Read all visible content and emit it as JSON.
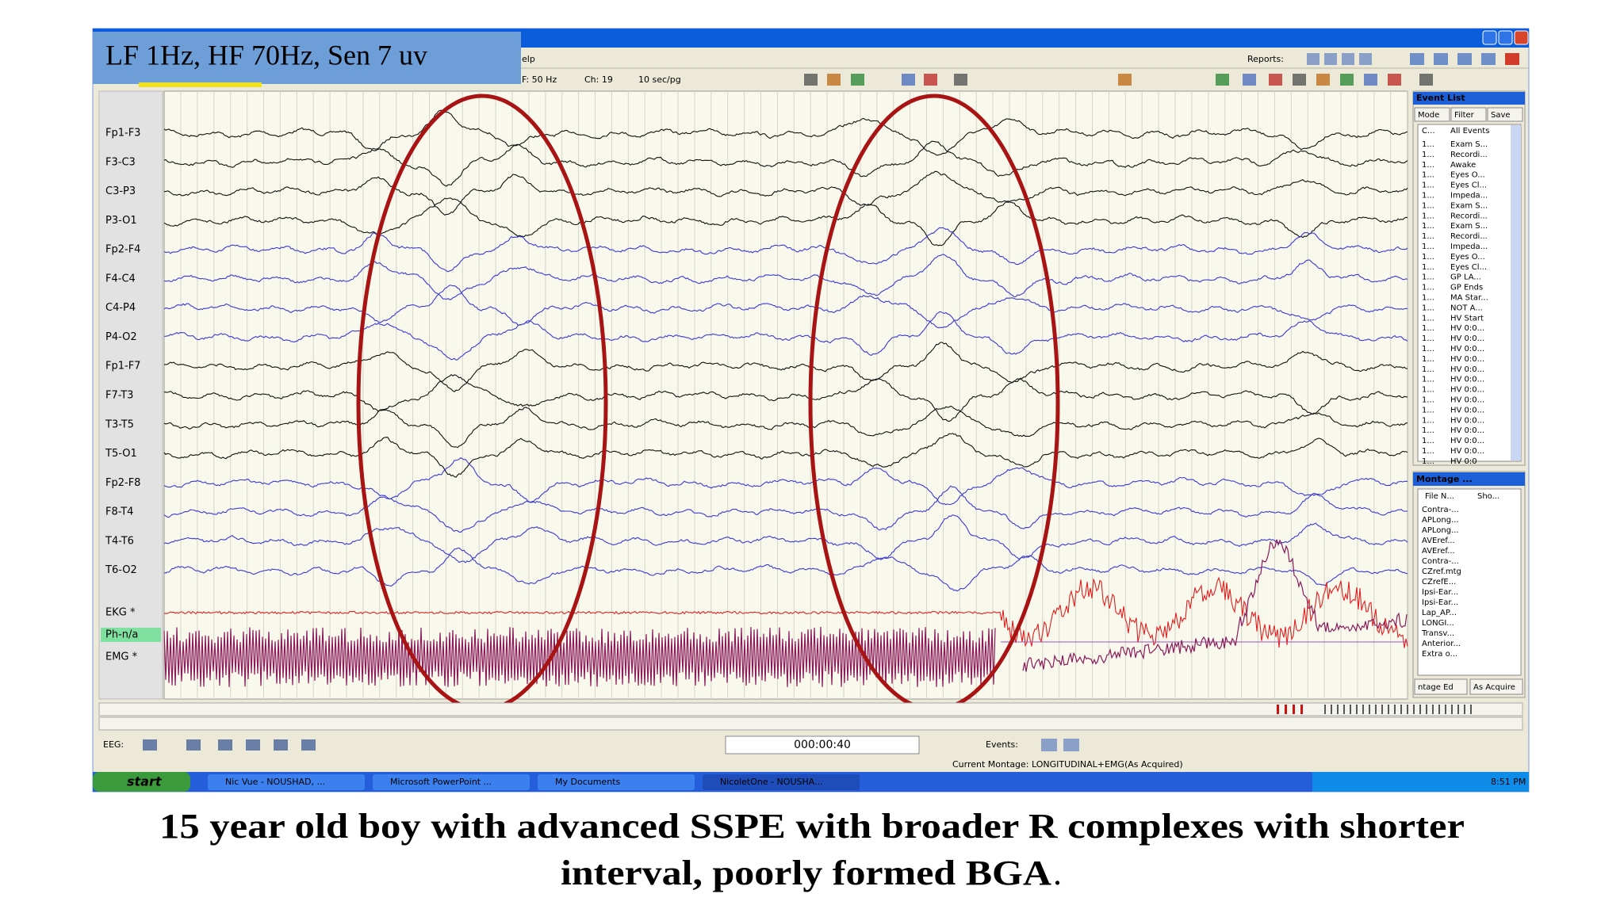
{
  "banner": "LF 1Hz, HF 70Hz, Sen 7 uv",
  "menu": {
    "fragment": "elp",
    "reports": "Reports:"
  },
  "toolbar": {
    "filter": "F: 50 Hz",
    "channels": "Ch: 19",
    "speed": "10 sec/pg"
  },
  "channels": [
    "Fp1-F3",
    "F3-C3",
    "C3-P3",
    "P3-O1",
    "Fp2-F4",
    "F4-C4",
    "C4-P4",
    "P4-O2",
    "Fp1-F7",
    "F7-T3",
    "T3-T5",
    "T5-O1",
    "Fp2-F8",
    "F8-T4",
    "T4-T6",
    "T6-O2",
    "EKG *",
    "Ph-n/a",
    "EMG *"
  ],
  "event_list": {
    "title": "Event List",
    "buttons": [
      "Mode",
      "Filter",
      "Save"
    ],
    "columns": [
      "C...",
      "All Events"
    ],
    "rows": [
      {
        "code": "1...",
        "event": "Exam S..."
      },
      {
        "code": "1...",
        "event": "Recordi..."
      },
      {
        "code": "1...",
        "event": "Awake"
      },
      {
        "code": "1...",
        "event": "Eyes O..."
      },
      {
        "code": "1...",
        "event": "Eyes Cl..."
      },
      {
        "code": "1...",
        "event": "Impeda..."
      },
      {
        "code": "1...",
        "event": "Exam S..."
      },
      {
        "code": "1...",
        "event": "Recordi..."
      },
      {
        "code": "1...",
        "event": "Exam S..."
      },
      {
        "code": "1...",
        "event": "Recordi..."
      },
      {
        "code": "1...",
        "event": "Impeda..."
      },
      {
        "code": "1...",
        "event": "Eyes O..."
      },
      {
        "code": "1...",
        "event": "Eyes Cl..."
      },
      {
        "code": "1...",
        "event": "GP LA..."
      },
      {
        "code": "1...",
        "event": "GP Ends"
      },
      {
        "code": "1...",
        "event": "MA Star..."
      },
      {
        "code": "1...",
        "event": "NOT A..."
      },
      {
        "code": "1...",
        "event": "HV Start"
      },
      {
        "code": "1...",
        "event": "HV 0:0..."
      },
      {
        "code": "1...",
        "event": "HV 0:0..."
      },
      {
        "code": "1...",
        "event": "HV 0:0..."
      },
      {
        "code": "1...",
        "event": "HV 0:0..."
      },
      {
        "code": "1...",
        "event": "HV 0:0..."
      },
      {
        "code": "1...",
        "event": "HV 0:0..."
      },
      {
        "code": "1...",
        "event": "HV 0:0..."
      },
      {
        "code": "1...",
        "event": "HV 0:0..."
      },
      {
        "code": "1...",
        "event": "HV 0:0..."
      },
      {
        "code": "1...",
        "event": "HV 0:0..."
      },
      {
        "code": "1...",
        "event": "HV 0:0..."
      },
      {
        "code": "1...",
        "event": "HV 0:0..."
      },
      {
        "code": "1...",
        "event": "HV 0:0..."
      },
      {
        "code": "1...",
        "event": "HV 0:0"
      }
    ]
  },
  "montage": {
    "title": "Montage ...",
    "columns": [
      "File N...",
      "Sho..."
    ],
    "rows": [
      "Contra-...",
      "APLong...",
      "APLong...",
      "AVEref...",
      "AVEref...",
      "Contra-...",
      "CZref.mtg",
      "CZrefE...",
      "Ipsi-Ear...",
      "Ipsi-Ear...",
      "Lap_AP...",
      "LONGI...",
      "Transv...",
      "Anterior...",
      "Extra o..."
    ],
    "buttons": [
      "ntage Ed",
      "As Acquire"
    ]
  },
  "bottom": {
    "eeg": "EEG:",
    "time": "000:00:40",
    "events": "Events:",
    "status": "Current Montage: LONGITUDINAL+EMG(As Acquired)"
  },
  "taskbar": {
    "start": "start",
    "items": [
      "Nic Vue - NOUSHAD, ...",
      "Microsoft PowerPoint ...",
      "My Documents",
      "NicoletOne - NOUSHA..."
    ],
    "clock": "8:51 PM"
  },
  "caption": [
    "15 year old boy with advanced SSPE with broader R complexes with shorter",
    "interval, poorly formed BGA",
    "."
  ]
}
